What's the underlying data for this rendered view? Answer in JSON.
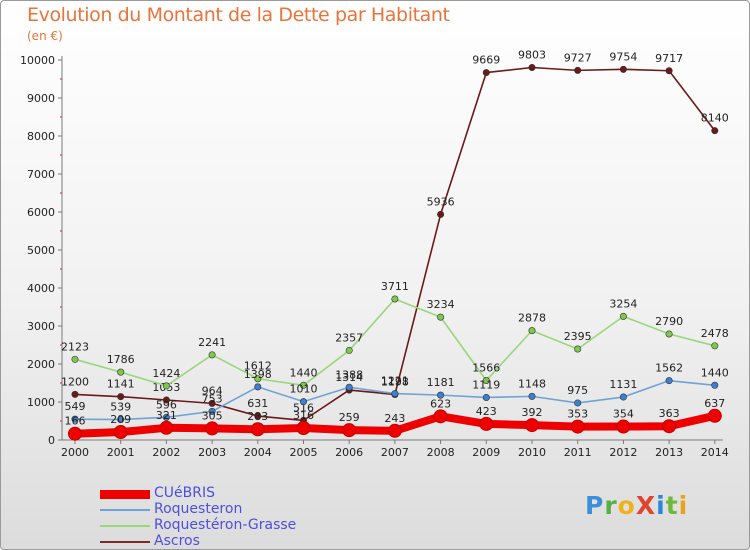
{
  "title": "Evolution du Montant de la Dette par Habitant",
  "subtitle": "(en €)",
  "logo_text": "ProXiti",
  "chart_data": {
    "type": "line",
    "title": "Evolution du Montant de la Dette par Habitant",
    "unit": "(en €)",
    "categories": [
      "2000",
      "2001",
      "2002",
      "2003",
      "2004",
      "2005",
      "2006",
      "2007",
      "2008",
      "2009",
      "2010",
      "2011",
      "2012",
      "2013",
      "2014"
    ],
    "ylim": [
      0,
      10000
    ],
    "yticks": [
      0,
      1000,
      2000,
      3000,
      4000,
      5000,
      6000,
      7000,
      8000,
      9000,
      10000
    ],
    "grid": false,
    "legend_position": "bottom-left",
    "series": [
      {
        "name": "Ascros",
        "color": "#6b1a1a",
        "point_color": "#6b1a1a",
        "values": [
          1200,
          1141,
          1053,
          964,
          631,
          516,
          1314,
          1198,
          5936,
          9669,
          9803,
          9727,
          9754,
          9717,
          8140
        ]
      },
      {
        "name": "Roquestéron-Grasse",
        "color": "#9ad67a",
        "point_color": "#7ec850",
        "values": [
          2123,
          1786,
          1424,
          2241,
          1612,
          1440,
          2357,
          3711,
          3234,
          1566,
          2878,
          2395,
          3254,
          2790,
          2478
        ]
      },
      {
        "name": "Roquesteron",
        "color": "#6fa3d6",
        "point_color": "#3f7fd0",
        "values": [
          549,
          539,
          596,
          753,
          1398,
          1010,
          1388,
          1221,
          1181,
          1119,
          1148,
          975,
          1131,
          1562,
          1440
        ]
      },
      {
        "name": "CUéBRIS",
        "color": "#ee0000",
        "point_color": "#ee0000",
        "values": [
          166,
          209,
          321,
          305,
          283,
          316,
          259,
          243,
          623,
          423,
          392,
          353,
          354,
          363,
          637
        ]
      }
    ]
  },
  "legend": [
    {
      "name": "CUéBRIS",
      "color": "#ee0000",
      "thickness": 9
    },
    {
      "name": "Roquesteron",
      "color": "#6fa3d6",
      "thickness": 2
    },
    {
      "name": "Roquestéron-Grasse",
      "color": "#9ad67a",
      "thickness": 2
    },
    {
      "name": "Ascros",
      "color": "#7a2a2a",
      "thickness": 2
    }
  ]
}
